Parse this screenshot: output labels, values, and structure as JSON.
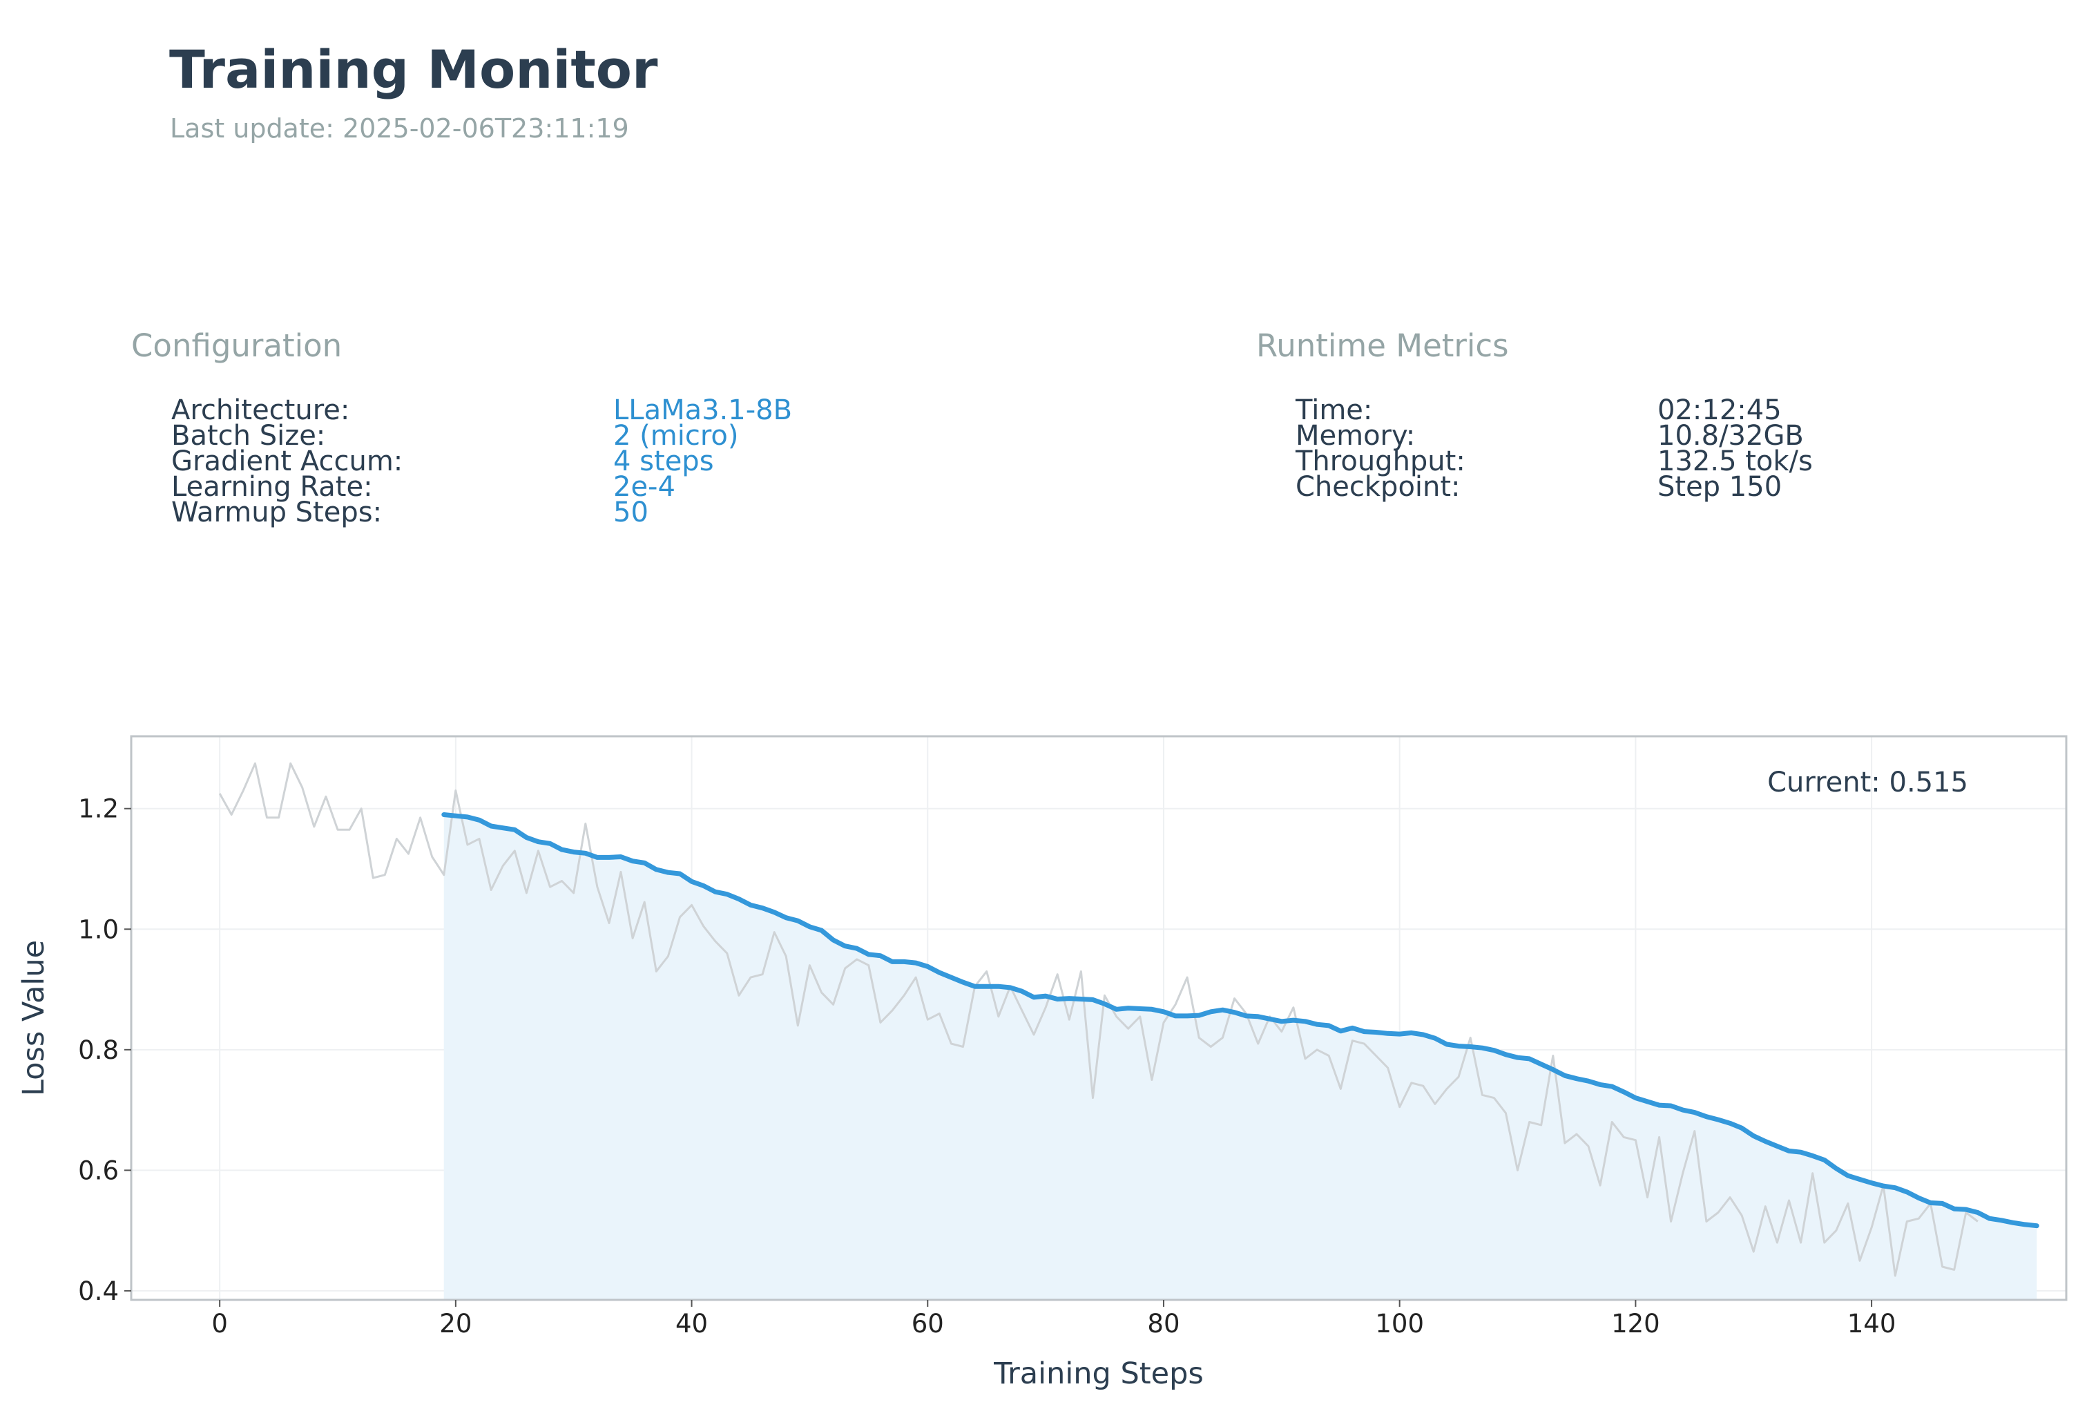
{
  "header": {
    "title": "Training Monitor",
    "subtitle": "Last update: 2025-02-06T23:11:19"
  },
  "configuration": {
    "heading": "Configuration",
    "rows": [
      {
        "label": "Architecture:",
        "value": "LLaMa3.1-8B"
      },
      {
        "label": "Batch Size:",
        "value": "2 (micro)"
      },
      {
        "label": "Gradient Accum:",
        "value": "4 steps"
      },
      {
        "label": "Learning Rate:",
        "value": "2e-4"
      },
      {
        "label": "Warmup Steps:",
        "value": "50"
      }
    ]
  },
  "runtime": {
    "heading": "Runtime Metrics",
    "rows": [
      {
        "label": "Time:",
        "value": "02:12:45"
      },
      {
        "label": "Memory:",
        "value": "10.8/32GB"
      },
      {
        "label": "Throughput:",
        "value": "132.5 tok/s"
      },
      {
        "label": "Checkpoint:",
        "value": "Step 150"
      }
    ]
  },
  "colors": {
    "accent": "#3498db",
    "raw_line": "#cfd3d6",
    "fill": "#eaf4fb",
    "text": "#2c3e50",
    "muted": "#95a5a6"
  },
  "chart_data": {
    "type": "line",
    "xlabel": "Training Steps",
    "ylabel": "Loss Value",
    "xlim": [
      -7.5,
      156.5
    ],
    "ylim": [
      0.385,
      1.32
    ],
    "xticks": [
      0,
      20,
      40,
      60,
      80,
      100,
      120,
      140
    ],
    "yticks": [
      0.4,
      0.6,
      0.8,
      1.0,
      1.2
    ],
    "grid": true,
    "annotation": "Current: 0.515",
    "series": [
      {
        "values_start_step": 0,
        "values": [
          1.225,
          1.19,
          1.23,
          1.275,
          1.185,
          1.185,
          1.275,
          1.235,
          1.17,
          1.22,
          1.165,
          1.165,
          1.2,
          1.085,
          1.09,
          1.15,
          1.125,
          1.185,
          1.12,
          1.09,
          1.23,
          1.14,
          1.15,
          1.065,
          1.105,
          1.13,
          1.06,
          1.13,
          1.07,
          1.08,
          1.06,
          1.175,
          1.07,
          1.01,
          1.095,
          0.985,
          1.045,
          0.93,
          0.955,
          1.02,
          1.04,
          1.005,
          0.98,
          0.96,
          0.89,
          0.92,
          0.925,
          0.995,
          0.955,
          0.84,
          0.94,
          0.895,
          0.875,
          0.935,
          0.95,
          0.94,
          0.845,
          0.865,
          0.89,
          0.92,
          0.85,
          0.86,
          0.81,
          0.805,
          0.905,
          0.93,
          0.855,
          0.905,
          0.865,
          0.825,
          0.87,
          0.925,
          0.85,
          0.93,
          0.72,
          0.89,
          0.855,
          0.835,
          0.855,
          0.75,
          0.845,
          0.875,
          0.92,
          0.82,
          0.805,
          0.82,
          0.885,
          0.86,
          0.81,
          0.855,
          0.83,
          0.87,
          0.785,
          0.8,
          0.79,
          0.735,
          0.815,
          0.81,
          0.79,
          0.77,
          0.705,
          0.745,
          0.74,
          0.71,
          0.735,
          0.755,
          0.82,
          0.725,
          0.72,
          0.695,
          0.6,
          0.68,
          0.675,
          0.79,
          0.645,
          0.66,
          0.64,
          0.575,
          0.68,
          0.655,
          0.65,
          0.555,
          0.655,
          0.515,
          0.595,
          0.665,
          0.515,
          0.53,
          0.555,
          0.525,
          0.465,
          0.54,
          0.48,
          0.55,
          0.48,
          0.595,
          0.48,
          0.5,
          0.545,
          0.45,
          0.505,
          0.575,
          0.425,
          0.515,
          0.52,
          0.545,
          0.44,
          0.435,
          0.53,
          0.515
        ]
      },
      {
        "values_start_step": 19,
        "values": [
          1.19,
          1.188,
          1.186,
          1.181,
          1.171,
          1.168,
          1.165,
          1.152,
          1.145,
          1.142,
          1.132,
          1.128,
          1.126,
          1.119,
          1.119,
          1.12,
          1.113,
          1.11,
          1.099,
          1.094,
          1.092,
          1.079,
          1.072,
          1.062,
          1.058,
          1.05,
          1.04,
          1.035,
          1.028,
          1.019,
          1.014,
          1.004,
          0.998,
          0.982,
          0.972,
          0.968,
          0.958,
          0.956,
          0.946,
          0.946,
          0.944,
          0.938,
          0.928,
          0.92,
          0.912,
          0.905,
          0.905,
          0.905,
          0.903,
          0.897,
          0.887,
          0.889,
          0.884,
          0.885,
          0.884,
          0.883,
          0.876,
          0.867,
          0.869,
          0.868,
          0.867,
          0.863,
          0.856,
          0.856,
          0.857,
          0.863,
          0.866,
          0.862,
          0.856,
          0.855,
          0.851,
          0.847,
          0.849,
          0.847,
          0.842,
          0.84,
          0.831,
          0.836,
          0.83,
          0.829,
          0.827,
          0.826,
          0.828,
          0.825,
          0.819,
          0.809,
          0.806,
          0.805,
          0.803,
          0.799,
          0.792,
          0.787,
          0.785,
          0.776,
          0.767,
          0.757,
          0.752,
          0.748,
          0.742,
          0.739,
          0.73,
          0.72,
          0.714,
          0.708,
          0.707,
          0.7,
          0.696,
          0.689,
          0.684,
          0.678,
          0.67,
          0.657,
          0.648,
          0.64,
          0.632,
          0.63,
          0.624,
          0.617,
          0.603,
          0.591,
          0.585,
          0.579,
          0.574,
          0.571,
          0.564,
          0.554,
          0.546,
          0.545,
          0.536,
          0.535,
          0.53,
          0.52,
          0.517,
          0.513,
          0.51,
          0.508
        ]
      }
    ]
  }
}
